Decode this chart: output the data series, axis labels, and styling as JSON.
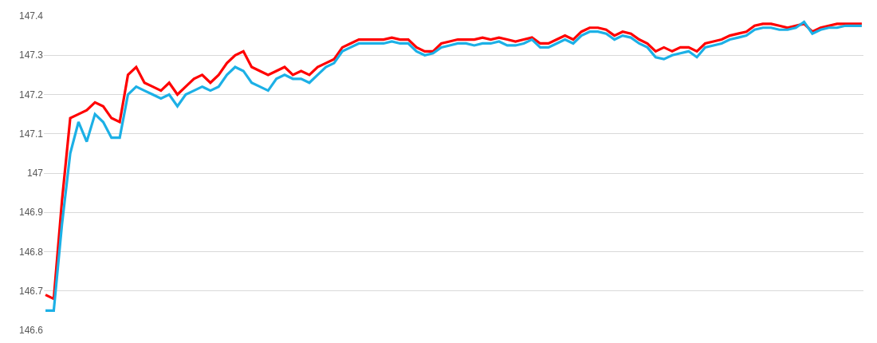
{
  "chart_data": {
    "type": "line",
    "categories": [
      null,
      null,
      null,
      null,
      null,
      null,
      null,
      null,
      null,
      null,
      null,
      null,
      null,
      null,
      null,
      null,
      null,
      null,
      null,
      null,
      null,
      null,
      null,
      null,
      null,
      null,
      null,
      null,
      null,
      null,
      null,
      null,
      null,
      null,
      null,
      null,
      null,
      null,
      null,
      null,
      null,
      null,
      null,
      null,
      null,
      null,
      null,
      null,
      null,
      null,
      null,
      null,
      null,
      null,
      null,
      null,
      null,
      null,
      null,
      null,
      null,
      null,
      null,
      null,
      null,
      null,
      null,
      null,
      null,
      null,
      null,
      null,
      null,
      null,
      null,
      null,
      null,
      null,
      null,
      null,
      null,
      null,
      null,
      null,
      null,
      null,
      null,
      null,
      null,
      null,
      null,
      null,
      null,
      null,
      null,
      null,
      null,
      null,
      null,
      null
    ],
    "series": [
      {
        "color": "#ff0000",
        "values": [
          146.69,
          146.68,
          146.93,
          147.14,
          147.15,
          147.16,
          147.18,
          147.17,
          147.14,
          147.13,
          147.25,
          147.27,
          147.23,
          147.22,
          147.21,
          147.23,
          147.2,
          147.22,
          147.24,
          147.25,
          147.23,
          147.25,
          147.28,
          147.3,
          147.31,
          147.27,
          147.26,
          147.25,
          147.26,
          147.27,
          147.25,
          147.26,
          147.25,
          147.27,
          147.28,
          147.29,
          147.32,
          147.33,
          147.34,
          147.34,
          147.34,
          147.34,
          147.345,
          147.34,
          147.34,
          147.32,
          147.31,
          147.31,
          147.33,
          147.335,
          147.34,
          147.34,
          147.34,
          147.345,
          147.34,
          147.345,
          147.34,
          147.335,
          147.34,
          147.345,
          147.33,
          147.33,
          147.34,
          147.35,
          147.34,
          147.36,
          147.37,
          147.37,
          147.365,
          147.35,
          147.36,
          147.355,
          147.34,
          147.33,
          147.31,
          147.32,
          147.31,
          147.32,
          147.32,
          147.31,
          147.33,
          147.335,
          147.34,
          147.35,
          147.355,
          147.36,
          147.375,
          147.38,
          147.38,
          147.375,
          147.37,
          147.375,
          147.38,
          147.36,
          147.37,
          147.375,
          147.38,
          147.38,
          147.38,
          147.38
        ]
      },
      {
        "color": "#1cb0e6",
        "values": [
          146.65,
          146.65,
          146.87,
          147.05,
          147.13,
          147.08,
          147.15,
          147.13,
          147.09,
          147.09,
          147.2,
          147.22,
          147.21,
          147.2,
          147.19,
          147.2,
          147.17,
          147.2,
          147.21,
          147.22,
          147.21,
          147.22,
          147.25,
          147.27,
          147.26,
          147.23,
          147.22,
          147.21,
          147.24,
          147.25,
          147.24,
          147.24,
          147.23,
          147.25,
          147.27,
          147.28,
          147.31,
          147.32,
          147.33,
          147.33,
          147.33,
          147.33,
          147.335,
          147.33,
          147.33,
          147.31,
          147.3,
          147.305,
          147.32,
          147.325,
          147.33,
          147.33,
          147.325,
          147.33,
          147.33,
          147.335,
          147.325,
          147.325,
          147.33,
          147.34,
          147.32,
          147.32,
          147.33,
          147.34,
          147.33,
          147.35,
          147.36,
          147.36,
          147.355,
          147.34,
          147.35,
          147.345,
          147.33,
          147.32,
          147.295,
          147.29,
          147.3,
          147.305,
          147.31,
          147.295,
          147.32,
          147.325,
          147.33,
          147.34,
          147.345,
          147.35,
          147.365,
          147.37,
          147.37,
          147.365,
          147.365,
          147.37,
          147.385,
          147.355,
          147.365,
          147.37,
          147.37,
          147.375,
          147.375,
          147.375
        ]
      }
    ],
    "ylim": [
      146.6,
      147.4
    ],
    "yticks": [
      146.6,
      146.7,
      146.8,
      146.9,
      147,
      147.1,
      147.2,
      147.3,
      147.4
    ],
    "grid": "y",
    "marker": "none",
    "line_style": "solid",
    "tick_labels": "y"
  }
}
